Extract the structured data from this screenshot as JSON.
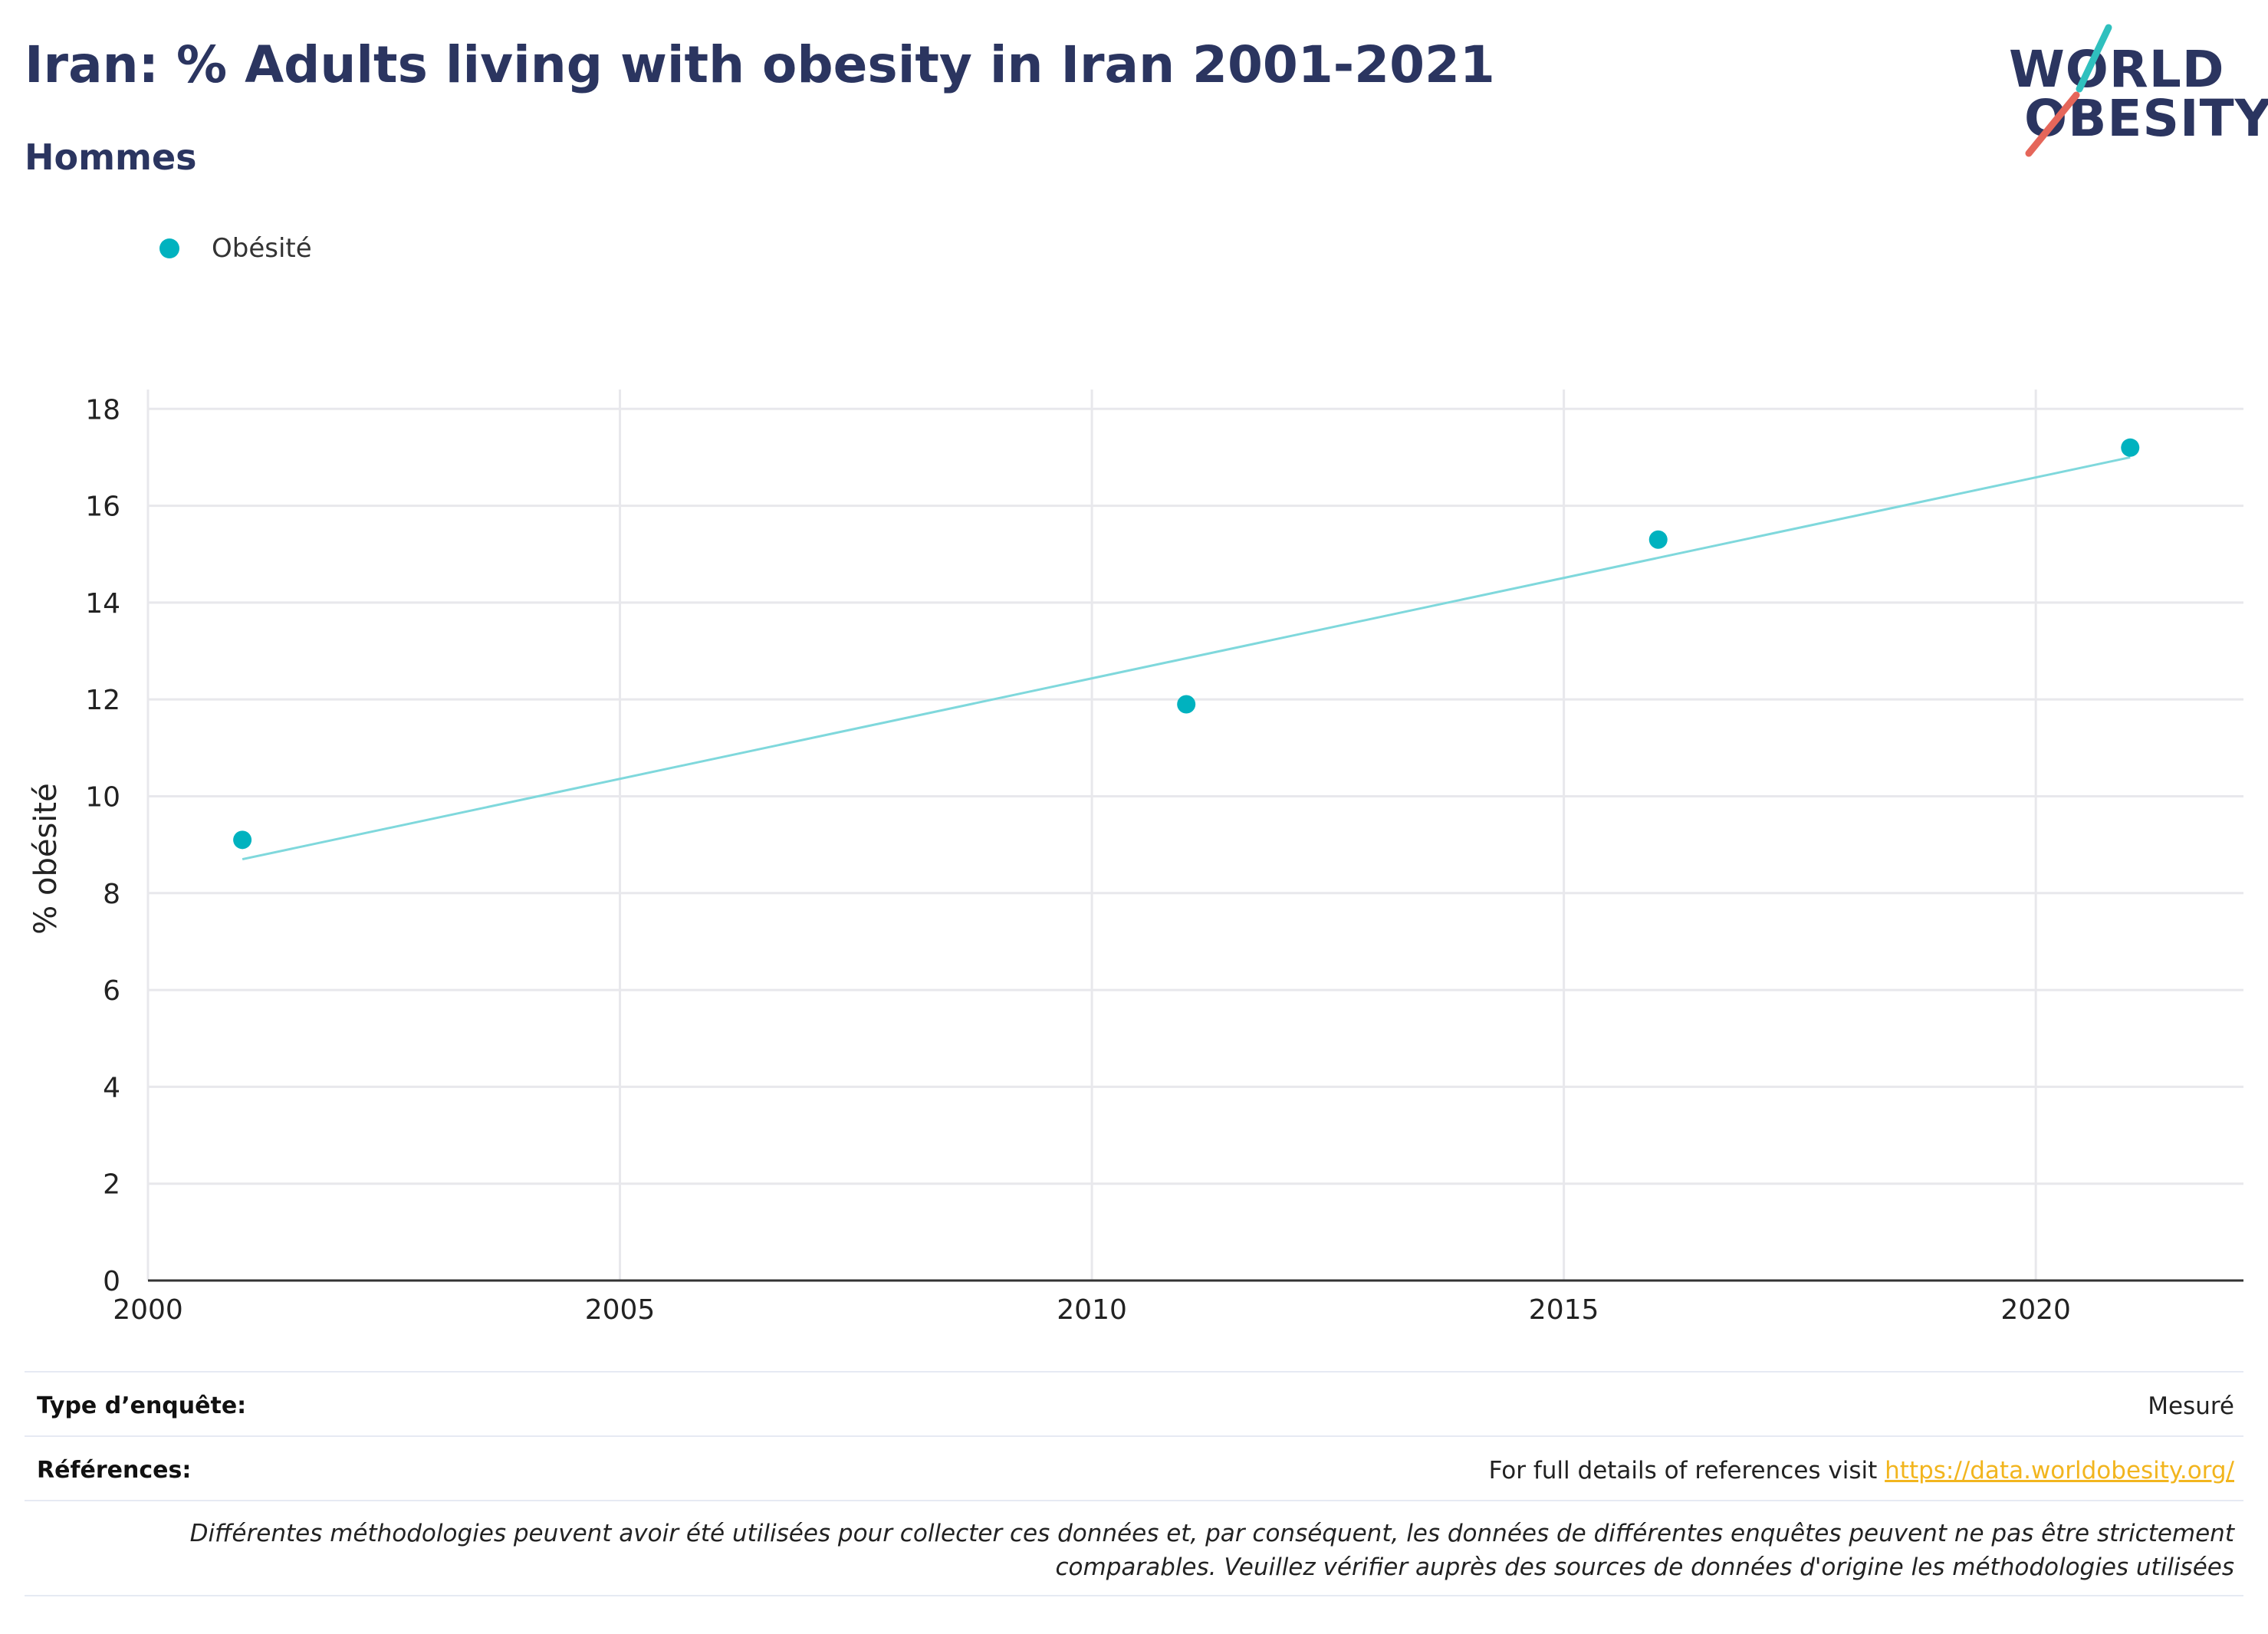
{
  "header": {
    "title": "Iran: % Adults living with obesity in Iran 2001-2021",
    "subtitle": "Hommes"
  },
  "logo": {
    "line1": "WORLD",
    "line2": "OBESITY",
    "slash_colors": [
      "#2fc0be",
      "#e5665a"
    ]
  },
  "colors": {
    "series": "#00b2bf",
    "trend": "#7fd8dc",
    "title": "#2b3560",
    "link": "#f2b51e",
    "grid": "#e8e8ec"
  },
  "chart_data": {
    "type": "scatter",
    "title": "Iran: % Adults living with obesity in Iran 2001-2021",
    "subtitle": "Hommes",
    "xlabel": "",
    "ylabel": "% obésité",
    "xlim": [
      2000,
      2022.2
    ],
    "ylim": [
      0,
      18.4
    ],
    "xticks": [
      2000,
      2005,
      2010,
      2015,
      2020
    ],
    "yticks": [
      0,
      2,
      4,
      6,
      8,
      10,
      12,
      14,
      16,
      18
    ],
    "grid": true,
    "legend_position": "top-left",
    "series": [
      {
        "name": "Obésité",
        "x": [
          2001,
          2011,
          2016,
          2021
        ],
        "y": [
          9.1,
          11.9,
          15.3,
          17.2
        ]
      }
    ],
    "trendline": {
      "x": [
        2001,
        2021
      ],
      "y": [
        8.7,
        17.0
      ]
    }
  },
  "footer": {
    "survey_type_label": "Type d’enquête:",
    "survey_type_value": "Mesuré",
    "references_label": "Références:",
    "references_text": "For full details of references visit ",
    "references_link": "https://data.worldobesity.org/",
    "note_line1": "Différentes méthodologies peuvent avoir été utilisées pour collecter ces données et, par conséquent, les données de différentes enquêtes peuvent ne pas être strictement",
    "note_line2": "comparables. Veuillez vérifier auprès des sources de données d'origine les méthodologies utilisées"
  }
}
